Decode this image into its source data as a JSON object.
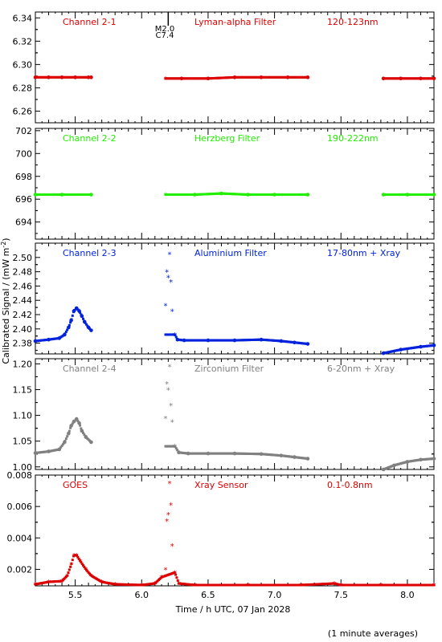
{
  "figure": {
    "ylabel": "Calibrated Signal / (mW m",
    "ylabel_sup": "-2",
    "ylabel_end": ")",
    "xlabel": "Time / h UTC, 07 Jan 2028",
    "footnote": "(1 minute averages)",
    "flare_marker": {
      "x": 6.2,
      "line1": "M2.0",
      "line2": "C7.4"
    }
  },
  "x_axis": {
    "range": [
      5.2,
      8.2
    ],
    "ticks": [
      5.5,
      6.0,
      6.5,
      7.0,
      7.5,
      8.0
    ],
    "tick_labels": [
      "5.5",
      "6.0",
      "6.5",
      "7.0",
      "7.5",
      "8.0"
    ]
  },
  "chart_data": [
    {
      "type": "scatter",
      "name": "Channel 2-1",
      "filter": "Lyman-alpha Filter",
      "band": "120-123nm",
      "color": "#dd0000",
      "ylim": [
        6.25,
        6.345
      ],
      "y_ticks": [
        6.26,
        6.28,
        6.3,
        6.32,
        6.34
      ],
      "y_tick_labels": [
        "6.26",
        "6.28",
        "6.30",
        "6.32",
        "6.34"
      ],
      "points": [
        [
          5.2,
          6.289
        ],
        [
          5.3,
          6.289
        ],
        [
          5.4,
          6.289
        ],
        [
          5.5,
          6.289
        ],
        [
          5.6,
          6.289
        ],
        [
          5.62,
          6.289
        ],
        [
          6.18,
          6.288
        ],
        [
          6.3,
          6.288
        ],
        [
          6.5,
          6.288
        ],
        [
          6.7,
          6.289
        ],
        [
          6.9,
          6.289
        ],
        [
          7.1,
          6.289
        ],
        [
          7.25,
          6.289
        ],
        [
          7.82,
          6.288
        ],
        [
          7.95,
          6.288
        ],
        [
          8.1,
          6.288
        ],
        [
          8.2,
          6.288
        ]
      ],
      "segments": [
        [
          5.2,
          5.62
        ],
        [
          6.18,
          7.25
        ],
        [
          7.82,
          8.2
        ]
      ]
    },
    {
      "type": "scatter",
      "name": "Channel 2-2",
      "filter": "Herzberg Filter",
      "band": "190-222nm",
      "color": "#22ee00",
      "ylim": [
        692.5,
        702.2
      ],
      "y_ticks": [
        694,
        696,
        698,
        700,
        702
      ],
      "y_tick_labels": [
        "694",
        "696",
        "698",
        "700",
        "702"
      ],
      "points": [
        [
          5.2,
          696.4
        ],
        [
          5.4,
          696.4
        ],
        [
          5.62,
          696.4
        ],
        [
          6.18,
          696.4
        ],
        [
          6.4,
          696.4
        ],
        [
          6.6,
          696.5
        ],
        [
          6.8,
          696.4
        ],
        [
          7.0,
          696.4
        ],
        [
          7.25,
          696.4
        ],
        [
          7.82,
          696.4
        ],
        [
          8.0,
          696.4
        ],
        [
          8.2,
          696.4
        ]
      ],
      "segments": [
        [
          5.2,
          5.62
        ],
        [
          6.18,
          7.25
        ],
        [
          7.82,
          8.2
        ]
      ]
    },
    {
      "type": "scatter",
      "name": "Channel 2-3",
      "filter": "Aluminium Filter",
      "band": "17-80nm + Xray",
      "color": "#0022dd",
      "ylim": [
        2.365,
        2.52
      ],
      "y_ticks": [
        2.38,
        2.4,
        2.42,
        2.44,
        2.46,
        2.48,
        2.5
      ],
      "y_tick_labels": [
        "2.38",
        "2.40",
        "2.42",
        "2.44",
        "2.46",
        "2.48",
        "2.50"
      ],
      "points": [
        [
          5.2,
          2.383
        ],
        [
          5.3,
          2.385
        ],
        [
          5.38,
          2.387
        ],
        [
          5.42,
          2.392
        ],
        [
          5.45,
          2.402
        ],
        [
          5.47,
          2.412
        ],
        [
          5.49,
          2.425
        ],
        [
          5.51,
          2.429
        ],
        [
          5.53,
          2.425
        ],
        [
          5.55,
          2.418
        ],
        [
          5.57,
          2.41
        ],
        [
          5.6,
          2.402
        ],
        [
          5.62,
          2.398
        ],
        [
          6.18,
          2.433
        ],
        [
          6.19,
          2.48
        ],
        [
          6.2,
          2.472
        ],
        [
          6.21,
          2.505
        ],
        [
          6.22,
          2.466
        ],
        [
          6.23,
          2.425
        ],
        [
          6.25,
          2.392
        ],
        [
          6.27,
          2.385
        ],
        [
          6.32,
          2.384
        ],
        [
          6.5,
          2.384
        ],
        [
          6.7,
          2.384
        ],
        [
          6.9,
          2.385
        ],
        [
          7.05,
          2.383
        ],
        [
          7.15,
          2.381
        ],
        [
          7.25,
          2.379
        ],
        [
          7.82,
          2.366
        ],
        [
          7.95,
          2.371
        ],
        [
          8.1,
          2.375
        ],
        [
          8.2,
          2.377
        ]
      ],
      "segments": [
        [
          5.2,
          5.62
        ],
        [
          6.18,
          7.25
        ],
        [
          7.82,
          8.2
        ]
      ]
    },
    {
      "type": "scatter",
      "name": "Channel 2-4",
      "filter": "Zirconium Filter",
      "band": "6-20nm + Xray",
      "color": "#808080",
      "ylim": [
        0.995,
        1.21
      ],
      "y_ticks": [
        1.0,
        1.05,
        1.1,
        1.15,
        1.2
      ],
      "y_tick_labels": [
        "1.00",
        "1.05",
        "1.10",
        "1.15",
        "1.20"
      ],
      "points": [
        [
          5.2,
          1.027
        ],
        [
          5.3,
          1.03
        ],
        [
          5.38,
          1.034
        ],
        [
          5.42,
          1.048
        ],
        [
          5.45,
          1.065
        ],
        [
          5.47,
          1.08
        ],
        [
          5.49,
          1.088
        ],
        [
          5.51,
          1.093
        ],
        [
          5.53,
          1.085
        ],
        [
          5.55,
          1.07
        ],
        [
          5.58,
          1.058
        ],
        [
          5.62,
          1.048
        ],
        [
          6.18,
          1.095
        ],
        [
          6.19,
          1.162
        ],
        [
          6.2,
          1.15
        ],
        [
          6.21,
          1.195
        ],
        [
          6.22,
          1.12
        ],
        [
          6.23,
          1.088
        ],
        [
          6.25,
          1.04
        ],
        [
          6.28,
          1.028
        ],
        [
          6.35,
          1.026
        ],
        [
          6.5,
          1.026
        ],
        [
          6.7,
          1.026
        ],
        [
          6.9,
          1.025
        ],
        [
          7.05,
          1.022
        ],
        [
          7.15,
          1.019
        ],
        [
          7.25,
          1.016
        ],
        [
          7.82,
          0.995
        ],
        [
          7.9,
          1.003
        ],
        [
          8.0,
          1.01
        ],
        [
          8.1,
          1.014
        ],
        [
          8.2,
          1.016
        ]
      ],
      "segments": [
        [
          5.2,
          5.62
        ],
        [
          6.18,
          7.25
        ],
        [
          7.82,
          8.2
        ]
      ]
    },
    {
      "type": "scatter",
      "name": "GOES",
      "filter": "Xray Sensor",
      "band": "0.1-0.8nm",
      "color": "#dd0000",
      "ylim": [
        0.00095,
        0.008
      ],
      "y_ticks": [
        0.002,
        0.004,
        0.006,
        0.008
      ],
      "y_tick_labels": [
        "0.002",
        "0.004",
        "0.006",
        "0.008"
      ],
      "points": [
        [
          5.2,
          0.00105
        ],
        [
          5.3,
          0.0012
        ],
        [
          5.4,
          0.00125
        ],
        [
          5.44,
          0.0016
        ],
        [
          5.47,
          0.0023
        ],
        [
          5.49,
          0.0029
        ],
        [
          5.51,
          0.0029
        ],
        [
          5.54,
          0.0025
        ],
        [
          5.58,
          0.002
        ],
        [
          5.62,
          0.0016
        ],
        [
          5.7,
          0.0012
        ],
        [
          5.8,
          0.00105
        ],
        [
          6.0,
          0.001
        ],
        [
          6.1,
          0.0011
        ],
        [
          6.15,
          0.0015
        ],
        [
          6.18,
          0.002
        ],
        [
          6.19,
          0.0051
        ],
        [
          6.2,
          0.0055
        ],
        [
          6.21,
          0.0075
        ],
        [
          6.22,
          0.0061
        ],
        [
          6.23,
          0.0035
        ],
        [
          6.25,
          0.0018
        ],
        [
          6.28,
          0.0011
        ],
        [
          6.4,
          0.001
        ],
        [
          6.8,
          0.001
        ],
        [
          7.2,
          0.001
        ],
        [
          7.45,
          0.0011
        ],
        [
          7.5,
          0.001
        ],
        [
          7.8,
          0.001
        ],
        [
          8.2,
          0.001
        ]
      ],
      "segments": []
    }
  ]
}
